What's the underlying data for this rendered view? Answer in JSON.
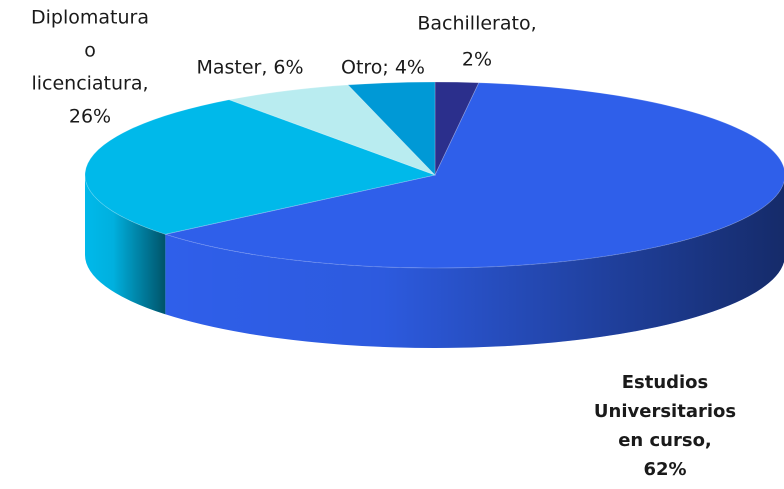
{
  "chart_data": {
    "type": "pie3d",
    "values": [
      2,
      62,
      26,
      6,
      4
    ],
    "value_labels": [
      [
        "Bachillerato,",
        "2%"
      ],
      [
        "Estudios",
        "Universitarios",
        "en curso,",
        "62%"
      ],
      [
        "Diplomatura",
        "o",
        "licenciatura,",
        "26%"
      ],
      [
        "Master, 6%"
      ],
      [
        "Otro; 4%"
      ]
    ],
    "colors": [
      "#2b2f8c",
      "#2f5fea",
      "#00b9ea",
      "#b9ecf0",
      "#0099d6"
    ]
  }
}
